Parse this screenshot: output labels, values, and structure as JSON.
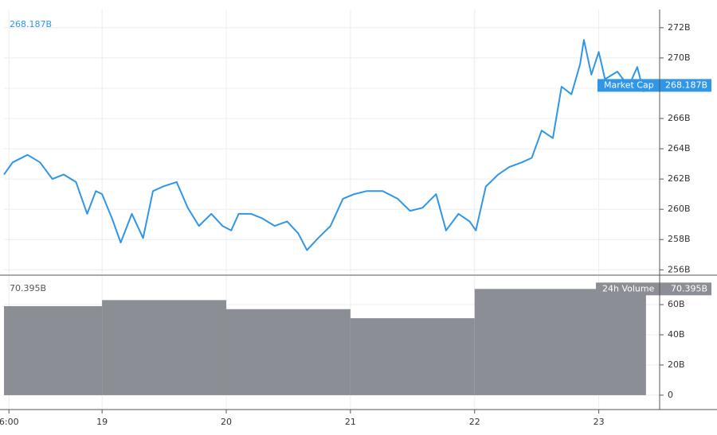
{
  "chart_data": [
    {
      "type": "line",
      "series": [
        {
          "name": "Market Cap",
          "color": "#2f96e8",
          "last_label": "268.187B",
          "x": [
            18.21,
            18.28,
            18.4,
            18.5,
            18.6,
            18.69,
            18.79,
            18.88,
            18.95,
            19.0,
            19.08,
            19.15,
            19.24,
            19.33,
            19.41,
            19.49,
            19.6,
            19.69,
            19.78,
            19.88,
            19.97,
            20.04,
            20.1,
            20.2,
            20.29,
            20.39,
            20.49,
            20.58,
            20.65,
            20.74,
            20.84,
            20.94,
            21.03,
            21.13,
            21.26,
            21.38,
            21.48,
            21.58,
            21.69,
            21.77,
            21.87,
            21.96,
            22.01,
            22.09,
            22.19,
            22.28,
            22.38,
            22.46,
            22.54,
            22.63,
            22.7,
            22.78,
            22.85,
            22.88,
            22.94,
            23.0,
            23.05,
            23.15,
            23.24,
            23.31,
            23.36,
            23.4
          ],
          "values": [
            262.3,
            263.1,
            263.6,
            263.1,
            262.0,
            262.3,
            261.8,
            259.7,
            261.2,
            261.0,
            259.4,
            257.8,
            259.7,
            258.1,
            261.2,
            261.5,
            261.8,
            260.1,
            258.9,
            259.7,
            258.9,
            258.6,
            259.7,
            259.7,
            259.4,
            258.9,
            259.2,
            258.4,
            257.3,
            258.1,
            258.9,
            260.7,
            261.0,
            261.2,
            261.2,
            260.7,
            259.9,
            260.1,
            261.0,
            258.6,
            259.7,
            259.2,
            258.6,
            261.5,
            262.3,
            262.8,
            263.1,
            263.4,
            265.2,
            264.7,
            268.1,
            267.6,
            269.6,
            271.2,
            268.9,
            270.4,
            268.6,
            269.1,
            268.1,
            269.4,
            267.8,
            268.187
          ]
        }
      ],
      "xlim": [
        18.21,
        23.49
      ],
      "ylim": [
        255.7,
        273.2
      ],
      "yticks": [
        {
          "value": 256,
          "label": "256B"
        },
        {
          "value": 258,
          "label": "258B"
        },
        {
          "value": 260,
          "label": "260B"
        },
        {
          "value": 262,
          "label": "262B"
        },
        {
          "value": 264,
          "label": "264B"
        },
        {
          "value": 266,
          "label": "266B"
        },
        {
          "value": 268,
          "label": "268B"
        },
        {
          "value": 270,
          "label": "270B"
        },
        {
          "value": 272,
          "label": "272B"
        }
      ],
      "grid": true
    },
    {
      "type": "histogram",
      "series": [
        {
          "name": "24h Volume",
          "color": "#8b8e94",
          "last_label": "70.395B",
          "bins": [
            18.21,
            19,
            20,
            21,
            22,
            23.38
          ],
          "values": [
            59,
            63,
            57,
            51,
            70.395
          ]
        }
      ],
      "xlim": [
        18.21,
        23.49
      ],
      "xticks": [
        {
          "value": 18.25,
          "label": "6:00"
        },
        19,
        20,
        21,
        22,
        23
      ],
      "ylim": [
        -9,
        79
      ],
      "yticks": [
        0,
        {
          "value": 20,
          "label": "20B"
        },
        {
          "value": 40,
          "label": "40B"
        },
        {
          "value": 60,
          "label": "60B"
        }
      ],
      "grid": true
    }
  ]
}
